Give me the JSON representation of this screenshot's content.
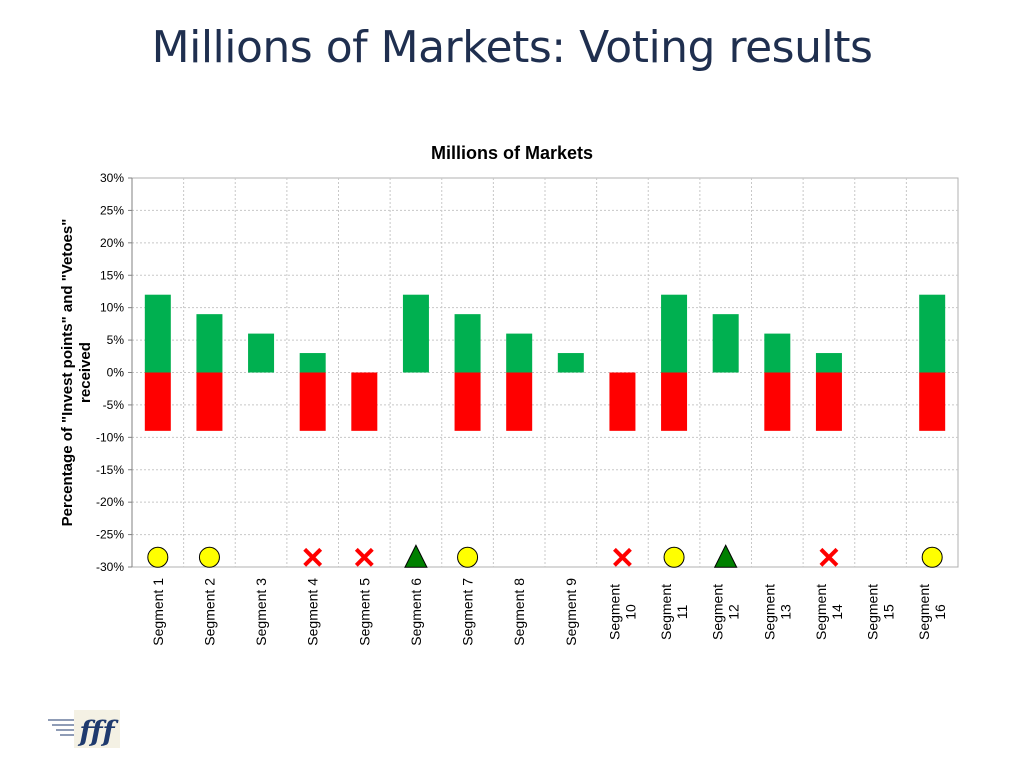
{
  "slide": {
    "title": "Millions of Markets: Voting results"
  },
  "chart_data": {
    "type": "bar",
    "title": "Millions of Markets",
    "ylabel": "Percentage of \"Invest points\" and \"Vetoes\" received",
    "ylabel_lines": [
      "Percentage of \"Invest points\" and \"Vetoes\"",
      "received"
    ],
    "ylim": [
      -30,
      30
    ],
    "yticks": [
      30,
      25,
      20,
      15,
      10,
      5,
      0,
      -5,
      -10,
      -15,
      -20,
      -25,
      -30
    ],
    "ytick_labels": [
      "30%",
      "25%",
      "20%",
      "15%",
      "10%",
      "5%",
      "0%",
      "-5%",
      "-10%",
      "-15%",
      "-20%",
      "-25%",
      "-30%"
    ],
    "grid": true,
    "legend": "none",
    "categories": [
      "Segment 1",
      "Segment 2",
      "Segment 3",
      "Segment 4",
      "Segment 5",
      "Segment 6",
      "Segment 7",
      "Segment 8",
      "Segment 9",
      "Segment 10",
      "Segment 11",
      "Segment 12",
      "Segment 13",
      "Segment 14",
      "Segment 15",
      "Segment 16"
    ],
    "category_lines": [
      [
        "Segment 1"
      ],
      [
        "Segment 2"
      ],
      [
        "Segment 3"
      ],
      [
        "Segment 4"
      ],
      [
        "Segment 5"
      ],
      [
        "Segment 6"
      ],
      [
        "Segment 7"
      ],
      [
        "Segment 8"
      ],
      [
        "Segment 9"
      ],
      [
        "Segment",
        "10"
      ],
      [
        "Segment",
        "11"
      ],
      [
        "Segment",
        "12"
      ],
      [
        "Segment",
        "13"
      ],
      [
        "Segment",
        "14"
      ],
      [
        "Segment",
        "15"
      ],
      [
        "Segment",
        "16"
      ]
    ],
    "series": [
      {
        "color": "#00b050",
        "values": [
          12,
          9,
          6,
          3,
          0,
          12,
          9,
          6,
          3,
          0,
          12,
          9,
          6,
          3,
          0,
          12
        ]
      },
      {
        "color": "#ff0000",
        "values": [
          -9,
          -9,
          0,
          -9,
          -9,
          0,
          -9,
          -9,
          0,
          -9,
          -9,
          0,
          -9,
          -9,
          0,
          -9
        ]
      }
    ],
    "markers": {
      "y": -28.5,
      "values": [
        "circle",
        "circle",
        "none",
        "cross",
        "cross",
        "triangle",
        "circle",
        "none",
        "none",
        "cross",
        "circle",
        "triangle",
        "none",
        "cross",
        "none",
        "circle"
      ],
      "colors": {
        "circle": "#ffff00",
        "cross": "#ff0000",
        "triangle": "#008000"
      }
    }
  },
  "logo": {
    "text": "fff",
    "color": "#1f3a6e"
  }
}
